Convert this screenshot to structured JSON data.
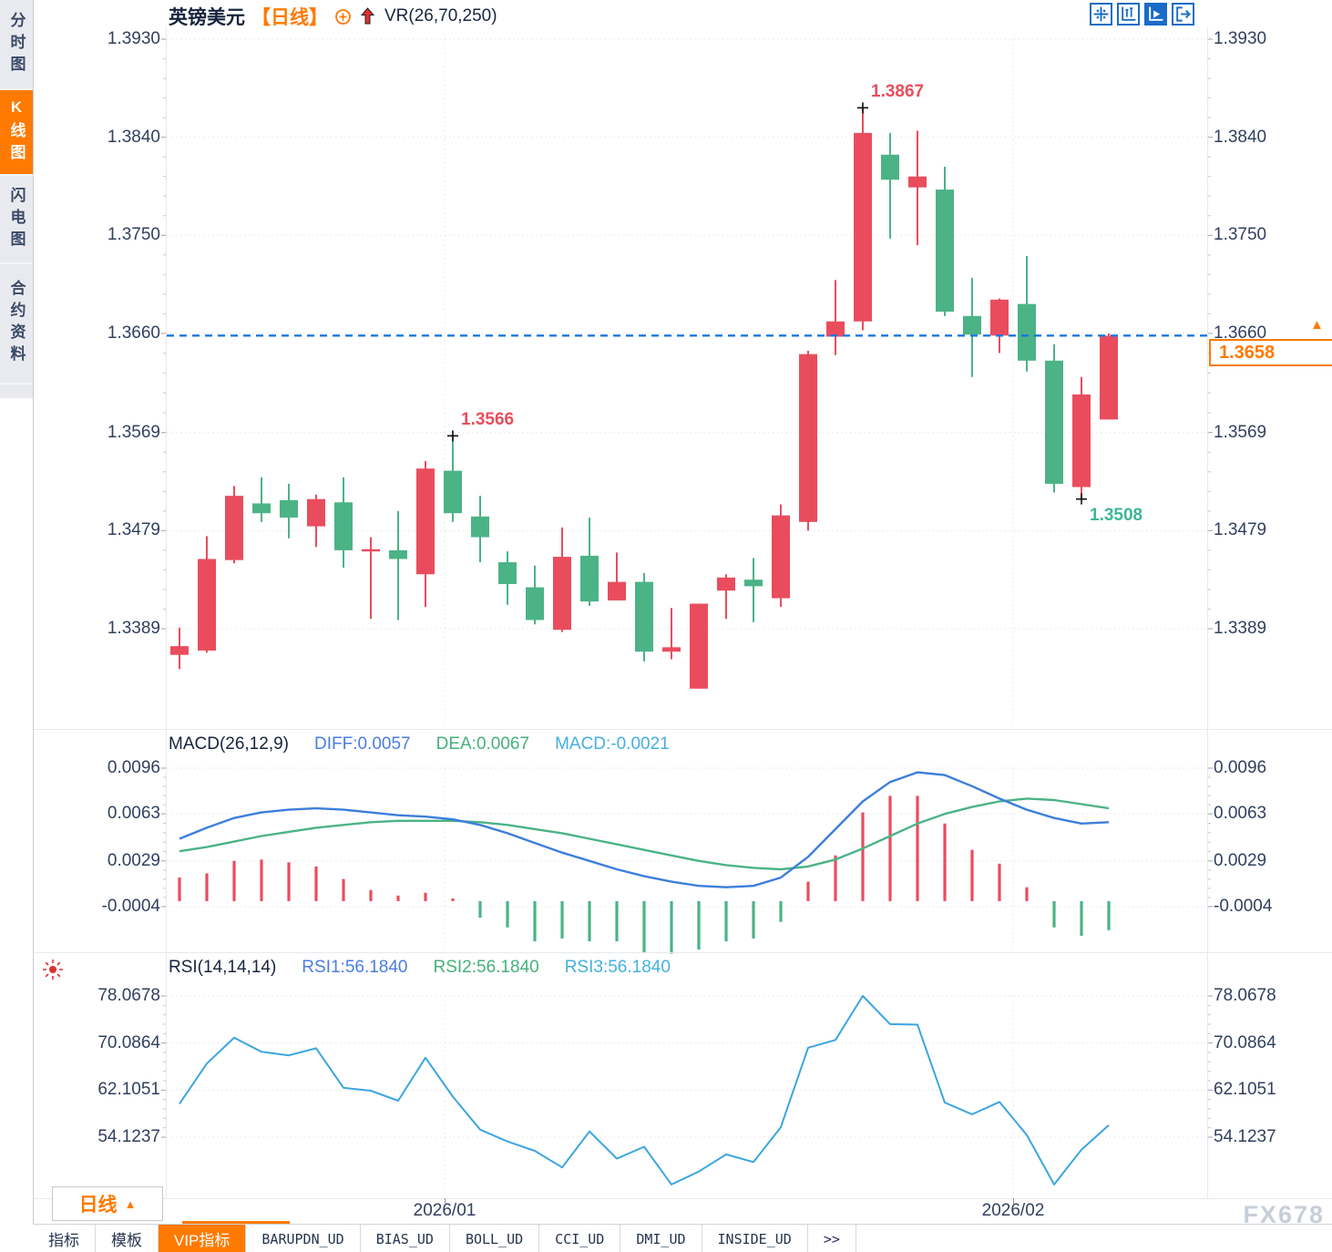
{
  "watermark": "FX678",
  "sidebar": {
    "items": [
      {
        "label": "分时图",
        "active": false
      },
      {
        "label": "K线图",
        "active": true
      },
      {
        "label": "闪电图",
        "active": false
      },
      {
        "label": "合约资料",
        "active": false
      }
    ]
  },
  "header": {
    "symbol": "英镑美元",
    "period_tag": "【日线】",
    "overlay_indicator": "VR(26,70,250)",
    "icons": [
      "plus-circle-icon",
      "up-arrow-icon"
    ]
  },
  "toolbar": {
    "icons": [
      {
        "name": "pan-crosshair-icon",
        "active": false
      },
      {
        "name": "axis-range-icon",
        "active": false
      },
      {
        "name": "axis-play-icon",
        "active": true
      },
      {
        "name": "exit-panel-icon",
        "active": false
      }
    ]
  },
  "current_price": {
    "value": "1.3658"
  },
  "price_axis_ticks": [
    "1.3930",
    "1.3840",
    "1.3750",
    "1.3660",
    "1.3569",
    "1.3479",
    "1.3389"
  ],
  "annotations": [
    {
      "text": "1.3867",
      "type": "high",
      "candle_index": 25,
      "price": 1.3867,
      "color": "#e94d5d"
    },
    {
      "text": "1.3566",
      "type": "high",
      "candle_index": 10,
      "price": 1.3566,
      "color": "#e94d5d"
    },
    {
      "text": "1.3508",
      "type": "low",
      "candle_index": 33,
      "price": 1.3508,
      "color": "#3eb696"
    }
  ],
  "macd_panel": {
    "title": "MACD(26,12,9)",
    "diff_label": "DIFF:0.0057",
    "dea_label": "DEA:0.0067",
    "macd_label": "MACD:-0.0021",
    "ticks": [
      "0.0096",
      "0.0063",
      "0.0029",
      "-0.0004"
    ]
  },
  "rsi_panel": {
    "title": "RSI(14,14,14)",
    "rsi1_label": "RSI1:56.1840",
    "rsi2_label": "RSI2:56.1840",
    "rsi3_label": "RSI3:56.1840",
    "ticks": [
      "78.0678",
      "70.0864",
      "62.1051",
      "54.1237"
    ]
  },
  "x_axis": {
    "labels": [
      {
        "text": "2026/01",
        "index": 9.7
      },
      {
        "text": "2026/02",
        "index": 30.5
      }
    ]
  },
  "period_selector": {
    "label": "日线"
  },
  "bottom_tabs": [
    {
      "label": "指标",
      "active": false,
      "mono": false
    },
    {
      "label": "模板",
      "active": false,
      "mono": false
    },
    {
      "label": "VIP指标",
      "active": true,
      "mono": false
    },
    {
      "label": "BARUPDN_UD",
      "active": false,
      "mono": true
    },
    {
      "label": "BIAS_UD",
      "active": false,
      "mono": true
    },
    {
      "label": "BOLL_UD",
      "active": false,
      "mono": true
    },
    {
      "label": "CCI_UD",
      "active": false,
      "mono": true
    },
    {
      "label": "DMI_UD",
      "active": false,
      "mono": true
    },
    {
      "label": "INSIDE_UD",
      "active": false,
      "mono": true
    },
    {
      "label": ">>",
      "active": false,
      "mono": true
    }
  ],
  "colors": {
    "up": "#e94d5d",
    "down": "#4bb386",
    "accent": "#ff7a00",
    "diff_line": "#3c7edb",
    "dea_line": "#4bb386",
    "rsi_line": "#3ba6e0",
    "price_line": "#1877e0",
    "axis_text": "#31405f",
    "diff_label": "#4a7de0",
    "dea_label": "#46b07a",
    "macd_label": "#45b0e0"
  },
  "chart_data": [
    {
      "type": "candlestick",
      "symbol": "英镑美元",
      "period": "日线",
      "up_means": "close>=open (red, CN convention)",
      "y_ticks": [
        1.393,
        1.384,
        1.375,
        1.366,
        1.3569,
        1.3479,
        1.3389
      ],
      "last_price": 1.3658,
      "ohlc": [
        [
          1.3365,
          1.339,
          1.3352,
          1.3373
        ],
        [
          1.3369,
          1.3474,
          1.3367,
          1.3453
        ],
        [
          1.3452,
          1.352,
          1.3449,
          1.3511
        ],
        [
          1.3504,
          1.3528,
          1.3487,
          1.3495
        ],
        [
          1.3507,
          1.3522,
          1.3472,
          1.3491
        ],
        [
          1.3483,
          1.3512,
          1.3464,
          1.3508
        ],
        [
          1.3505,
          1.3528,
          1.3445,
          1.3461
        ],
        [
          1.346,
          1.3473,
          1.3398,
          1.3462
        ],
        [
          1.3461,
          1.3497,
          1.3397,
          1.3453
        ],
        [
          1.3439,
          1.3543,
          1.3409,
          1.3536
        ],
        [
          1.3534,
          1.3566,
          1.3487,
          1.3495
        ],
        [
          1.3492,
          1.3511,
          1.345,
          1.3473
        ],
        [
          1.345,
          1.346,
          1.3411,
          1.343
        ],
        [
          1.3427,
          1.3447,
          1.3393,
          1.3397
        ],
        [
          1.3388,
          1.3482,
          1.3386,
          1.3455
        ],
        [
          1.3456,
          1.3491,
          1.341,
          1.3414
        ],
        [
          1.3415,
          1.3459,
          1.3415,
          1.3432
        ],
        [
          1.3432,
          1.344,
          1.3359,
          1.3368
        ],
        [
          1.3368,
          1.3408,
          1.3361,
          1.3372
        ],
        [
          1.3334,
          1.3412,
          1.3334,
          1.3412
        ],
        [
          1.3424,
          1.3439,
          1.3398,
          1.3436
        ],
        [
          1.3434,
          1.3454,
          1.3395,
          1.3428
        ],
        [
          1.3417,
          1.3503,
          1.3409,
          1.3493
        ],
        [
          1.3487,
          1.3644,
          1.3479,
          1.3641
        ],
        [
          1.3657,
          1.3709,
          1.364,
          1.3671
        ],
        [
          1.3671,
          1.3867,
          1.3663,
          1.3844
        ],
        [
          1.3824,
          1.3844,
          1.3747,
          1.3801
        ],
        [
          1.3794,
          1.3846,
          1.3741,
          1.3804
        ],
        [
          1.3792,
          1.3813,
          1.3676,
          1.368
        ],
        [
          1.3676,
          1.3711,
          1.362,
          1.3659
        ],
        [
          1.3658,
          1.3692,
          1.3642,
          1.3691
        ],
        [
          1.3687,
          1.3731,
          1.3625,
          1.3635
        ],
        [
          1.3635,
          1.365,
          1.3514,
          1.3522
        ],
        [
          1.3519,
          1.362,
          1.3508,
          1.3604
        ],
        [
          1.3581,
          1.366,
          1.3581,
          1.3658
        ]
      ]
    },
    {
      "type": "macd",
      "params": [
        26,
        12,
        9
      ],
      "y_ticks": [
        0.0096,
        0.0063,
        0.0029,
        -0.0004
      ],
      "current": {
        "diff": 0.0057,
        "dea": 0.0067,
        "macd": -0.0021
      },
      "diff": [
        0.0045,
        0.0053,
        0.006,
        0.0064,
        0.0066,
        0.0067,
        0.0066,
        0.0064,
        0.0062,
        0.0061,
        0.0059,
        0.0055,
        0.0049,
        0.0042,
        0.0035,
        0.0029,
        0.0023,
        0.0018,
        0.0014,
        0.0011,
        0.001,
        0.0011,
        0.0017,
        0.0032,
        0.0052,
        0.0072,
        0.0086,
        0.0093,
        0.0091,
        0.0083,
        0.0074,
        0.0066,
        0.006,
        0.0056,
        0.0057
      ],
      "dea": [
        0.0036,
        0.0039,
        0.0043,
        0.0047,
        0.005,
        0.0053,
        0.0055,
        0.0057,
        0.0058,
        0.0058,
        0.0058,
        0.0057,
        0.0055,
        0.0052,
        0.0049,
        0.0045,
        0.0041,
        0.0037,
        0.0033,
        0.0029,
        0.0026,
        0.0024,
        0.0023,
        0.0025,
        0.003,
        0.0038,
        0.0047,
        0.0056,
        0.0063,
        0.0068,
        0.0072,
        0.0074,
        0.0073,
        0.007,
        0.0067
      ],
      "histogram": [
        0.0017,
        0.002,
        0.0029,
        0.003,
        0.0028,
        0.0025,
        0.0016,
        0.0008,
        0.0004,
        0.0006,
        0.0002,
        -0.0012,
        -0.0019,
        -0.0029,
        -0.0027,
        -0.0029,
        -0.0029,
        -0.0037,
        -0.0038,
        -0.0035,
        -0.0029,
        -0.0027,
        -0.0015,
        0.0014,
        0.0033,
        0.0064,
        0.0076,
        0.0076,
        0.0056,
        0.0037,
        0.0027,
        0.001,
        -0.0019,
        -0.0025,
        -0.0021
      ]
    },
    {
      "type": "line",
      "name": "RSI",
      "params": [
        14,
        14,
        14
      ],
      "y_ticks": [
        78.0678,
        70.0864,
        62.1051,
        54.1237
      ],
      "current": {
        "rsi1": 56.184,
        "rsi2": 56.184,
        "rsi3": 56.184
      },
      "values": [
        59.8,
        66.6,
        71.0,
        68.6,
        68.0,
        69.2,
        62.5,
        62.0,
        60.3,
        67.6,
        61.0,
        55.4,
        53.4,
        51.8,
        49.0,
        55.1,
        50.5,
        52.5,
        46.1,
        48.3,
        51.2,
        49.9,
        55.8,
        69.3,
        70.6,
        78.07,
        73.3,
        73.2,
        60.0,
        58.0,
        60.1,
        54.5,
        46.1,
        52.0,
        56.18
      ]
    }
  ]
}
